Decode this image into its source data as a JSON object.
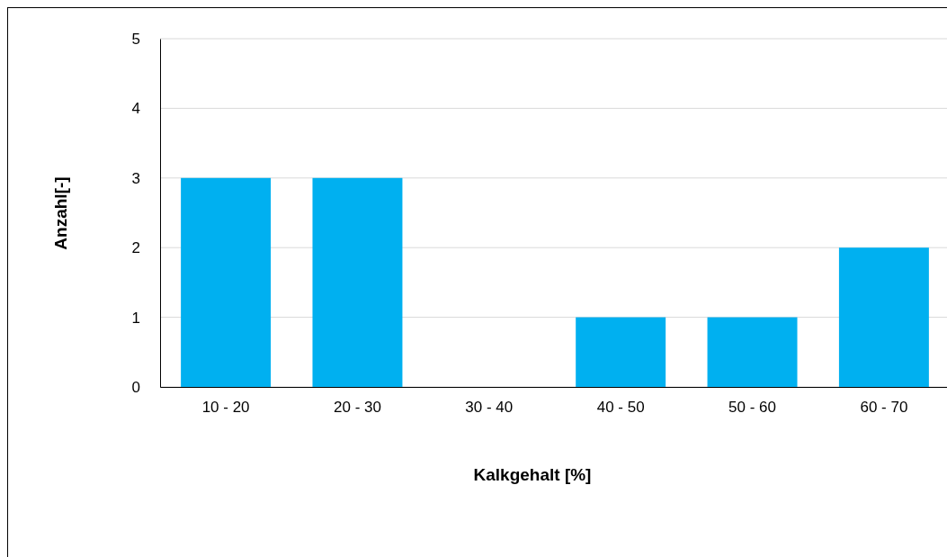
{
  "chart_data": {
    "type": "bar",
    "xlabel": "Kalkgehalt [%]",
    "ylabel": "Anzahl[-]",
    "categories": [
      "10 - 20",
      "20 - 30",
      "30 - 40",
      "40 - 50",
      "50 - 60",
      "60 - 70"
    ],
    "values": [
      3,
      3,
      0,
      1,
      1,
      2
    ],
    "color": "#00b0f0",
    "ylim": [
      0,
      5
    ],
    "yticks": [
      0,
      1,
      2,
      3,
      4,
      5
    ],
    "grid": "y"
  }
}
